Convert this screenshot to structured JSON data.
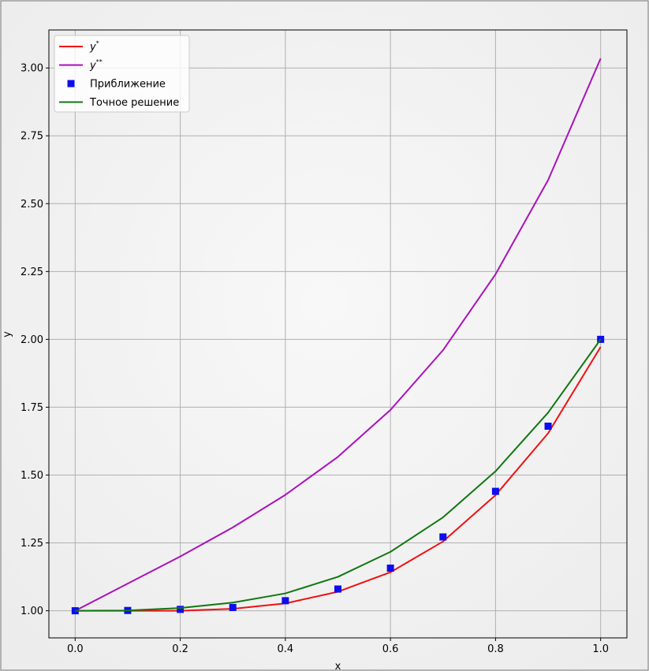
{
  "chart_data": {
    "type": "line",
    "title": "",
    "xlabel": "x",
    "ylabel": "y",
    "xlim": [
      -0.05,
      1.05
    ],
    "ylim": [
      0.9,
      3.14
    ],
    "grid": true,
    "legend_position": "top-left",
    "x_ticks": [
      "0.0",
      "0.2",
      "0.4",
      "0.6",
      "0.8",
      "1.0"
    ],
    "y_ticks": [
      "1.00",
      "1.25",
      "1.50",
      "1.75",
      "2.00",
      "2.25",
      "2.50",
      "2.75",
      "3.00"
    ],
    "x": [
      0.0,
      0.1,
      0.2,
      0.3,
      0.4,
      0.5,
      0.6,
      0.7,
      0.8,
      0.9,
      1.0
    ],
    "series": [
      {
        "name": "y*",
        "legend_base": "y",
        "legend_sup": "*",
        "style": "line",
        "color": "#ee1111",
        "values": [
          1.0,
          1.0,
          1.0,
          1.007,
          1.027,
          1.07,
          1.142,
          1.255,
          1.426,
          1.654,
          1.972
        ]
      },
      {
        "name": "y**",
        "legend_base": "y",
        "legend_sup": "**",
        "style": "line",
        "color": "#aa11bb",
        "values": [
          1.0,
          1.1,
          1.2,
          1.307,
          1.427,
          1.567,
          1.74,
          1.96,
          2.24,
          2.587,
          3.035
        ]
      },
      {
        "name": "Приближение",
        "style": "markers",
        "color": "#0d0dee",
        "values": [
          1.0,
          1.001,
          1.005,
          1.012,
          1.037,
          1.08,
          1.157,
          1.272,
          1.44,
          1.68,
          2.0
        ]
      },
      {
        "name": "Точное решение",
        "style": "line",
        "color": "#117711",
        "values": [
          1.0,
          1.001,
          1.01,
          1.03,
          1.064,
          1.125,
          1.217,
          1.344,
          1.514,
          1.73,
          2.0
        ]
      }
    ]
  }
}
